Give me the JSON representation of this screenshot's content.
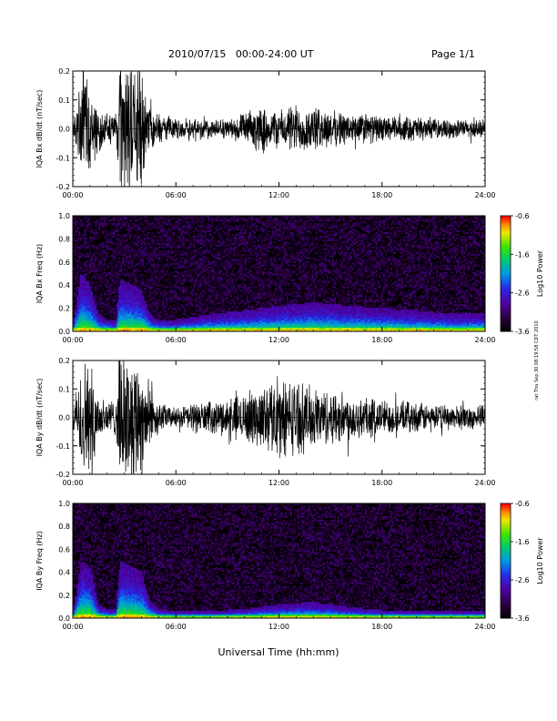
{
  "header": {
    "title": "2010/07/15   00:00-24:00 UT",
    "page": "Page 1/1"
  },
  "footer": {
    "xlabel": "Universal Time (hh:mm)",
    "stamp": "rat Thu Sep 30 08:19:58 CDT 2010"
  },
  "chart_data": [
    {
      "type": "line",
      "ylabel": "IQA Bx dB/dt (nT/sec)",
      "ylim": [
        -0.2,
        0.2
      ],
      "yticks": [
        "0.2",
        "0.1",
        "0.0",
        "-0.1",
        "-0.2"
      ],
      "xticks": [
        "00:00",
        "06:00",
        "12:00",
        "18:00",
        "24:00"
      ],
      "xlim_hours": [
        0,
        24
      ],
      "series_color": "#000000",
      "envelope": {
        "hours": [
          0,
          0.3,
          0.5,
          1.0,
          1.5,
          2.0,
          2.5,
          2.75,
          3.0,
          3.5,
          4.0,
          4.5,
          5.0,
          5.5,
          6.0,
          7.0,
          8.0,
          9.0,
          10.0,
          11.0,
          12.0,
          13.0,
          14.0,
          15.0,
          16.0,
          17.0,
          18.0,
          19.0,
          20.0,
          21.0,
          22.0,
          23.0,
          24.0
        ],
        "amplitude": [
          0.03,
          0.08,
          0.2,
          0.16,
          0.06,
          0.05,
          0.05,
          0.21,
          0.21,
          0.21,
          0.18,
          0.07,
          0.05,
          0.04,
          0.03,
          0.04,
          0.03,
          0.03,
          0.05,
          0.07,
          0.06,
          0.08,
          0.07,
          0.06,
          0.05,
          0.05,
          0.04,
          0.04,
          0.04,
          0.03,
          0.03,
          0.03,
          0.03
        ]
      }
    },
    {
      "type": "heatmap",
      "ylabel": "IQA Bx Freq (Hz)",
      "ylim": [
        0.0,
        1.0
      ],
      "yticks": [
        "1.0",
        "0.8",
        "0.6",
        "0.4",
        "0.2",
        "0.0"
      ],
      "xticks": [
        "00:00",
        "06:00",
        "12:00",
        "18:00",
        "24:00"
      ],
      "colorbar": {
        "label": "Log10 Power",
        "range": [
          -3.6,
          -0.6
        ],
        "ticks": [
          "-0.6",
          "-1.6",
          "-2.6",
          "-3.6"
        ]
      },
      "activity": {
        "hours": [
          0,
          0.5,
          1.0,
          1.5,
          2.0,
          2.5,
          2.75,
          3.5,
          4.0,
          4.5,
          5.0,
          6.0,
          8.0,
          10.0,
          12.0,
          14.0,
          16.0,
          18.0,
          20.0,
          22.0,
          24.0
        ],
        "cutoff_hz": [
          0.08,
          0.5,
          0.4,
          0.15,
          0.1,
          0.1,
          0.45,
          0.4,
          0.35,
          0.15,
          0.1,
          0.1,
          0.15,
          0.18,
          0.22,
          0.25,
          0.22,
          0.2,
          0.18,
          0.15,
          0.15
        ]
      }
    },
    {
      "type": "line",
      "ylabel": "IQA By dB/dt (nT/sec)",
      "ylim": [
        -0.2,
        0.2
      ],
      "yticks": [
        "0.2",
        "0.1",
        "0.0",
        "-0.1",
        "-0.2"
      ],
      "xticks": [
        "00:00",
        "06:00",
        "12:00",
        "18:00",
        "24:00"
      ],
      "xlim_hours": [
        0,
        24
      ],
      "series_color": "#000000",
      "envelope": {
        "hours": [
          0,
          0.3,
          0.5,
          1.0,
          1.5,
          2.0,
          2.5,
          2.75,
          3.0,
          3.5,
          4.0,
          4.5,
          5.0,
          5.5,
          6.0,
          7.0,
          8.0,
          9.0,
          10.0,
          11.0,
          12.0,
          13.0,
          14.0,
          15.0,
          16.0,
          17.0,
          18.0,
          19.0,
          20.0,
          21.0,
          22.0,
          23.0,
          24.0
        ],
        "amplitude": [
          0.03,
          0.08,
          0.2,
          0.18,
          0.08,
          0.06,
          0.06,
          0.21,
          0.21,
          0.21,
          0.2,
          0.1,
          0.05,
          0.04,
          0.03,
          0.05,
          0.05,
          0.06,
          0.08,
          0.1,
          0.13,
          0.12,
          0.1,
          0.09,
          0.08,
          0.07,
          0.06,
          0.05,
          0.05,
          0.04,
          0.04,
          0.04,
          0.04
        ]
      }
    },
    {
      "type": "heatmap",
      "ylabel": "IQA By Freq (Hz)",
      "ylim": [
        0.0,
        1.0
      ],
      "yticks": [
        "1.0",
        "0.8",
        "0.6",
        "0.4",
        "0.2",
        "0.0"
      ],
      "xticks": [
        "00:00",
        "06:00",
        "12:00",
        "18:00",
        "24:00"
      ],
      "colorbar": {
        "label": "Log10 Power",
        "range": [
          -3.6,
          -0.6
        ],
        "ticks": [
          "-0.6",
          "-1.6",
          "-2.6",
          "-3.6"
        ]
      },
      "activity": {
        "hours": [
          0,
          0.5,
          1.0,
          1.5,
          2.0,
          2.5,
          2.75,
          3.5,
          4.0,
          4.5,
          5.0,
          6.0,
          8.0,
          10.0,
          12.0,
          14.0,
          16.0,
          18.0,
          20.0,
          22.0,
          24.0
        ],
        "cutoff_hz": [
          0.06,
          0.5,
          0.45,
          0.12,
          0.08,
          0.08,
          0.5,
          0.45,
          0.4,
          0.15,
          0.08,
          0.06,
          0.06,
          0.08,
          0.12,
          0.14,
          0.1,
          0.07,
          0.06,
          0.06,
          0.06
        ]
      }
    }
  ]
}
